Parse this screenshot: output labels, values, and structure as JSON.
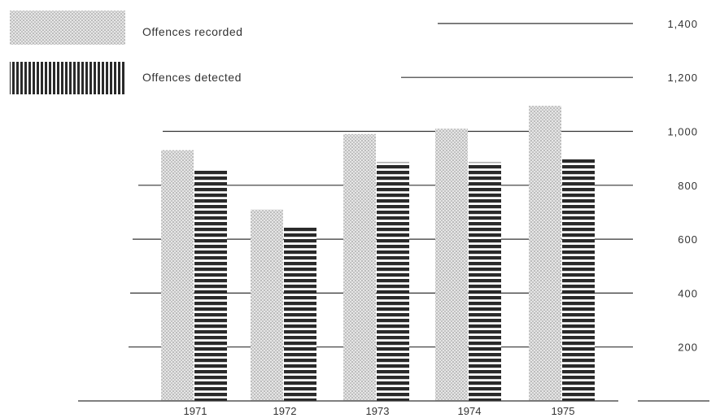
{
  "chart_data": {
    "type": "bar",
    "categories": [
      "1971",
      "1972",
      "1973",
      "1974",
      "1975"
    ],
    "series": [
      {
        "name": "Offences recorded",
        "values": [
          930,
          710,
          990,
          1010,
          1095
        ]
      },
      {
        "name": "Offences detected",
        "values": [
          855,
          645,
          885,
          885,
          900
        ]
      }
    ],
    "y_ticks": [
      "200",
      "400",
      "600",
      "800",
      "1,000",
      "1,200",
      "1,400"
    ],
    "y_tick_values": [
      200,
      400,
      600,
      800,
      1000,
      1200,
      1400
    ],
    "ylim": [
      0,
      1400
    ],
    "title": "",
    "xlabel": "",
    "ylabel": "",
    "legend_position": "top-left",
    "grid": true,
    "y_axis_side": "right",
    "colors": {
      "ink": "#333333",
      "recorded_dot": "#8a8a8a",
      "recorded_bg": "#e4e4e4",
      "detected": "#2a2a2a"
    }
  }
}
